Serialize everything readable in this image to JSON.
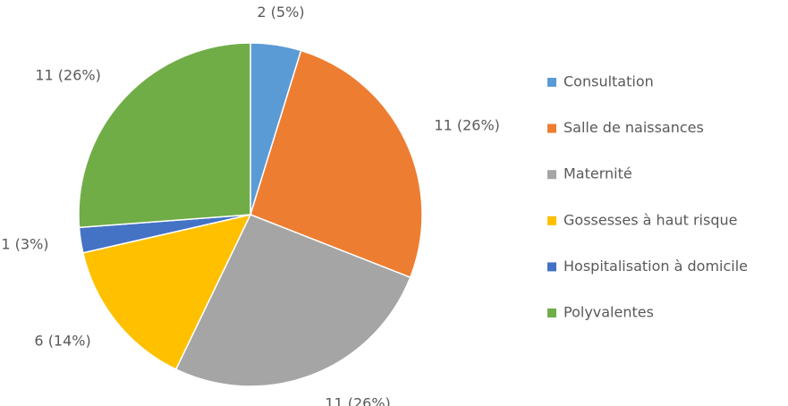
{
  "chart_data": {
    "type": "pie",
    "categories": [
      "Consultation",
      "Salle de naissances",
      "Maternité",
      "Gossesses à haut risque",
      "Hospitalisation à domicile",
      "Polyvalentes"
    ],
    "values": [
      2,
      11,
      11,
      6,
      1,
      11
    ],
    "value_labels": [
      "2 (5%)",
      "11 (26%)",
      "11 (26%)",
      "6 (14%)",
      "1 (3%)",
      "11 (26%)"
    ],
    "colors": [
      "#5b9bd5",
      "#ed7d31",
      "#a5a5a5",
      "#ffc000",
      "#4472c4",
      "#70ad47"
    ],
    "legend": "right"
  }
}
